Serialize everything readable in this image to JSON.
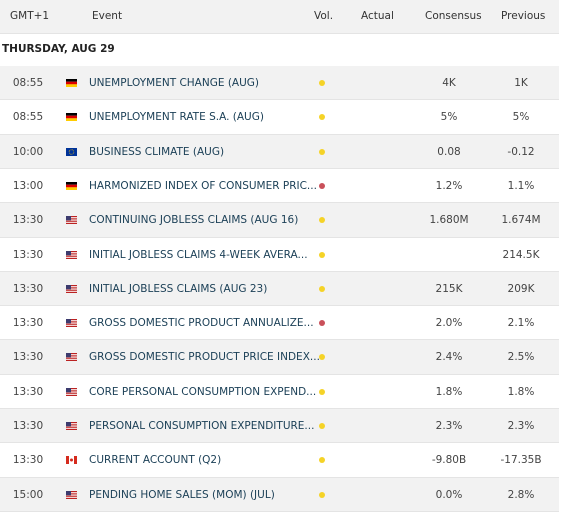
{
  "header": [
    "GMT+1",
    "Event",
    "Vol.",
    "Actual",
    "Consensus",
    "Previous"
  ],
  "date": "THURSDAY, AUG 29",
  "rows": [
    {
      "time": "08:55",
      "event": "UNEMPLOYMENT CHANGE (AUG)",
      "consensus": "4K",
      "previous": "1K"
    },
    {
      "time": "08:55",
      "event": "UNEMPLOYMENT RATE S.A. (AUG)",
      "consensus": "5%",
      "previous": "5%"
    },
    {
      "time": "10:00",
      "event": "BUSINESS CLIMATE (AUG)",
      "consensus": "0.08",
      "previous": "-0.12"
    },
    {
      "time": "13:00",
      "event": "HARMONIZED INDEX OF CONSUMER PRIC...",
      "consensus": "1.2%",
      "previous": "1.1%"
    },
    {
      "time": "13:30",
      "event": "CONTINUING JOBLESS CLAIMS (AUG 16)",
      "consensus": "1.680M",
      "previous": "1.674M"
    },
    {
      "time": "13:30",
      "event": "INITIAL JOBLESS CLAIMS 4-WEEK AVERA...",
      "previous": "214.5K"
    },
    {
      "time": "13:30",
      "event": "INITIAL JOBLESS CLAIMS (AUG 23)",
      "consensus": "215K",
      "previous": "209K"
    },
    {
      "time": "13:30",
      "event": "GROSS DOMESTIC PRODUCT ANNUALIZE...",
      "consensus": "2.0%",
      "previous": "2.1%"
    },
    {
      "time": "13:30",
      "event": "GROSS DOMESTIC PRODUCT PRICE INDEX...",
      "consensus": "2.4%",
      "previous": "2.5%"
    },
    {
      "time": "13:30",
      "event": "CORE PERSONAL CONSUMPTION EXPEND...",
      "consensus": "1.8%",
      "previous": "1.8%"
    },
    {
      "time": "13:30",
      "event": "PERSONAL CONSUMPTION EXPENDITURE...",
      "consensus": "2.3%",
      "previous": "2.3%"
    },
    {
      "time": "13:30",
      "event": "CURRENT ACCOUNT (Q2)",
      "consensus": "-9.80B",
      "previous": "-17.35B"
    },
    {
      "time": "15:00",
      "event": "PENDING HOME SALES (MOM) (JUL)",
      "consensus": "0.0%",
      "previous": "2.8%"
    }
  ]
}
